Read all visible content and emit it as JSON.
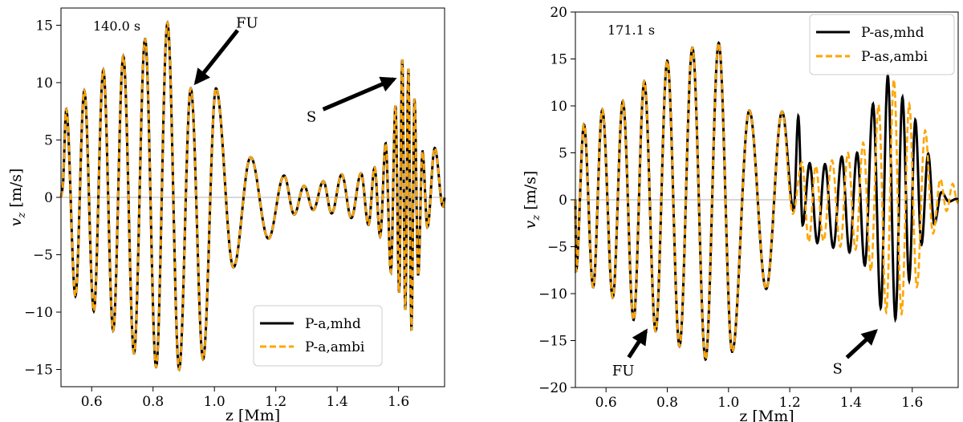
{
  "chart_data": [
    {
      "type": "line",
      "time_label": "140.0 s",
      "xlabel": "z [Mm]",
      "ylabel_main": "v",
      "ylabel_sub": "z",
      "ylabel_unit": " [m/s]",
      "xlim": [
        0.5,
        1.75
      ],
      "ylim": [
        -16.5,
        16.5
      ],
      "xticks": [
        0.6,
        0.8,
        1.0,
        1.2,
        1.4,
        1.6
      ],
      "xtick_labels": [
        "0.6",
        "0.8",
        "1.0",
        "1.2",
        "1.4",
        "1.6"
      ],
      "yticks": [
        -15,
        -10,
        -5,
        0,
        5,
        10,
        15
      ],
      "ytick_labels": [
        "−15",
        "−10",
        "−5",
        "0",
        "5",
        "10",
        "15"
      ],
      "legend_position": "lower-right",
      "series": [
        {
          "name": "P-a,mhd",
          "color": "#000000",
          "style": "solid"
        },
        {
          "name": "P-a,ambi",
          "color": "#FFA500",
          "style": "dashed"
        }
      ],
      "wave": {
        "x0": 0.5,
        "x1": 1.75,
        "x_turn": 1.2,
        "min_period": 0.012,
        "extrema": [
          [
            0.505,
            0.8
          ],
          [
            0.517,
            7.7
          ],
          [
            0.547,
            -8.6
          ],
          [
            0.576,
            9.3
          ],
          [
            0.607,
            -9.9
          ],
          [
            0.638,
            11.1
          ],
          [
            0.67,
            -11.6
          ],
          [
            0.703,
            12.3
          ],
          [
            0.738,
            -13.6
          ],
          [
            0.774,
            13.8
          ],
          [
            0.81,
            -14.8
          ],
          [
            0.847,
            15.2
          ],
          [
            0.885,
            -15.0
          ],
          [
            0.923,
            9.5
          ],
          [
            0.963,
            -14.1
          ],
          [
            1.005,
            9.5
          ],
          [
            1.062,
            -6.1
          ],
          [
            1.118,
            3.5
          ],
          [
            1.176,
            -3.6
          ],
          [
            1.227,
            1.9
          ],
          [
            1.26,
            -1.5
          ],
          [
            1.292,
            1.0
          ],
          [
            1.322,
            -1.1
          ],
          [
            1.355,
            1.4
          ],
          [
            1.382,
            -1.4
          ],
          [
            1.415,
            2.0
          ],
          [
            1.446,
            -1.8
          ],
          [
            1.478,
            2.1
          ],
          [
            1.502,
            -2.4
          ],
          [
            1.522,
            2.6
          ],
          [
            1.54,
            -3.4
          ],
          [
            1.558,
            4.7
          ],
          [
            1.575,
            -6.5
          ],
          [
            1.59,
            8.0
          ],
          [
            1.602,
            -8.3
          ],
          [
            1.612,
            12.0
          ],
          [
            1.622,
            -9.8
          ],
          [
            1.632,
            11.2
          ],
          [
            1.642,
            -11.6
          ],
          [
            1.652,
            8.6
          ],
          [
            1.664,
            -6.8
          ],
          [
            1.678,
            4.0
          ],
          [
            1.694,
            -2.6
          ],
          [
            1.718,
            4.3
          ],
          [
            1.745,
            -0.8
          ]
        ]
      },
      "annotations": [
        {
          "text": "FU",
          "x": 1.07,
          "y": 14.8,
          "arrow_to": [
            0.94,
            10.0
          ]
        },
        {
          "text": "S",
          "x": 1.3,
          "y": 6.6,
          "arrow_to": [
            1.585,
            10.3
          ]
        }
      ]
    },
    {
      "type": "line",
      "time_label": "171.1 s",
      "xlabel": "z [Mm]",
      "ylabel_main": "v",
      "ylabel_sub": "z",
      "ylabel_unit": " [m/s]",
      "xlim": [
        0.5,
        1.75
      ],
      "ylim": [
        -20,
        20
      ],
      "xticks": [
        0.6,
        0.8,
        1.0,
        1.2,
        1.4,
        1.6
      ],
      "xtick_labels": [
        "0.6",
        "0.8",
        "1.0",
        "1.2",
        "1.4",
        "1.6"
      ],
      "yticks": [
        -20,
        -15,
        -10,
        -5,
        0,
        5,
        10,
        15,
        20
      ],
      "ytick_labels": [
        "−20",
        "−15",
        "−10",
        "−5",
        "0",
        "5",
        "10",
        "15",
        "20"
      ],
      "legend_position": "upper-right",
      "series": [
        {
          "name": "P-as,mhd",
          "color": "#000000",
          "style": "solid"
        },
        {
          "name": "P-as,ambi",
          "color": "#FFA500",
          "style": "dashed"
        }
      ],
      "wave_mhd": {
        "x0": 0.5,
        "x1": 1.75,
        "x_turn": 1.2,
        "min_period": 0.012,
        "extrema": [
          [
            0.502,
            -7.6
          ],
          [
            0.528,
            8.0
          ],
          [
            0.558,
            -9.3
          ],
          [
            0.588,
            9.6
          ],
          [
            0.622,
            -10.4
          ],
          [
            0.655,
            10.5
          ],
          [
            0.69,
            -12.8
          ],
          [
            0.725,
            12.6
          ],
          [
            0.762,
            -14.0
          ],
          [
            0.8,
            14.8
          ],
          [
            0.84,
            -15.6
          ],
          [
            0.882,
            16.2
          ],
          [
            0.925,
            -17.0
          ],
          [
            0.968,
            16.7
          ],
          [
            1.012,
            -16.2
          ],
          [
            1.068,
            9.5
          ],
          [
            1.123,
            -9.5
          ],
          [
            1.175,
            9.4
          ],
          [
            1.213,
            -1.2
          ],
          [
            1.228,
            8.9
          ],
          [
            1.242,
            -2.7
          ],
          [
            1.265,
            3.9
          ],
          [
            1.29,
            -4.6
          ],
          [
            1.315,
            3.8
          ],
          [
            1.342,
            -5.1
          ],
          [
            1.37,
            4.6
          ],
          [
            1.395,
            -5.6
          ],
          [
            1.42,
            5.0
          ],
          [
            1.445,
            -7.0
          ],
          [
            1.472,
            10.2
          ],
          [
            1.497,
            -11.5
          ],
          [
            1.52,
            13.2
          ],
          [
            1.545,
            -12.7
          ],
          [
            1.568,
            10.9
          ],
          [
            1.59,
            -8.6
          ],
          [
            1.61,
            8.5
          ],
          [
            1.63,
            -4.8
          ],
          [
            1.652,
            4.9
          ],
          [
            1.672,
            -2.6
          ],
          [
            1.695,
            0.8
          ],
          [
            1.72,
            -0.2
          ],
          [
            1.745,
            0.1
          ]
        ]
      },
      "wave_ambi": {
        "x0": 0.5,
        "x1": 1.75,
        "x_turn": 1.2,
        "min_period": 0.012,
        "extrema": [
          [
            0.502,
            -7.6
          ],
          [
            0.528,
            8.0
          ],
          [
            0.558,
            -9.3
          ],
          [
            0.588,
            9.6
          ],
          [
            0.622,
            -10.4
          ],
          [
            0.655,
            10.5
          ],
          [
            0.69,
            -12.8
          ],
          [
            0.725,
            12.6
          ],
          [
            0.762,
            -14.0
          ],
          [
            0.8,
            14.8
          ],
          [
            0.84,
            -15.6
          ],
          [
            0.882,
            16.2
          ],
          [
            0.925,
            -17.0
          ],
          [
            0.968,
            16.7
          ],
          [
            1.012,
            -16.2
          ],
          [
            1.068,
            9.5
          ],
          [
            1.123,
            -9.5
          ],
          [
            1.175,
            9.4
          ],
          [
            1.21,
            -1.5
          ],
          [
            1.24,
            4.0
          ],
          [
            1.262,
            -4.5
          ],
          [
            1.285,
            3.6
          ],
          [
            1.31,
            -4.4
          ],
          [
            1.338,
            4.2
          ],
          [
            1.365,
            -5.0
          ],
          [
            1.39,
            5.0
          ],
          [
            1.415,
            -5.3
          ],
          [
            1.44,
            6.1
          ],
          [
            1.465,
            -7.6
          ],
          [
            1.49,
            10.1
          ],
          [
            1.515,
            -12.0
          ],
          [
            1.54,
            12.8
          ],
          [
            1.565,
            -12.2
          ],
          [
            1.59,
            10.2
          ],
          [
            1.615,
            -9.3
          ],
          [
            1.642,
            7.4
          ],
          [
            1.668,
            -3.6
          ],
          [
            1.692,
            2.2
          ],
          [
            1.712,
            -1.2
          ],
          [
            1.732,
            1.7
          ],
          [
            1.748,
            -0.3
          ]
        ]
      },
      "annotations": [
        {
          "text": "FU",
          "x": 0.62,
          "y": -18.7,
          "arrow_to": [
            0.73,
            -14.0
          ]
        },
        {
          "text": "S",
          "x": 1.34,
          "y": -18.5,
          "arrow_to": [
            1.48,
            -14.0
          ]
        }
      ]
    }
  ]
}
